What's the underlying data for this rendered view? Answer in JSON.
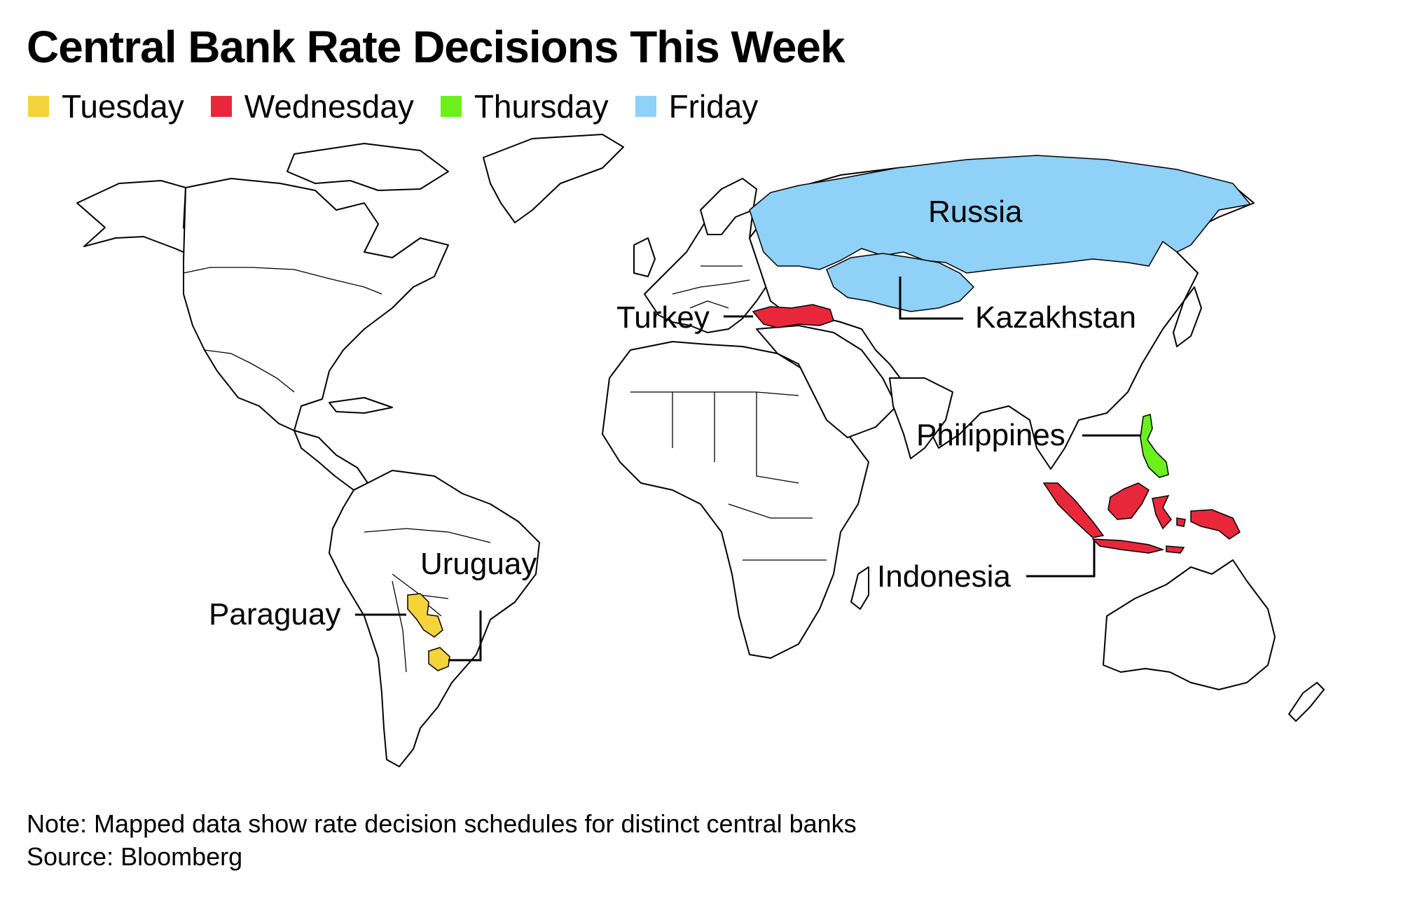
{
  "title": "Central Bank Rate Decisions This Week",
  "legend": [
    {
      "label": "Tuesday",
      "color": "#f5d33b"
    },
    {
      "label": "Wednesday",
      "color": "#e8283a"
    },
    {
      "label": "Thursday",
      "color": "#6bf01c"
    },
    {
      "label": "Friday",
      "color": "#8fd1f7"
    }
  ],
  "countries": {
    "russia": {
      "label": "Russia",
      "day": "Friday",
      "color": "#8fd1f7"
    },
    "kazakhstan": {
      "label": "Kazakhstan",
      "day": "Friday",
      "color": "#8fd1f7"
    },
    "turkey": {
      "label": "Turkey",
      "day": "Wednesday",
      "color": "#e8283a"
    },
    "indonesia": {
      "label": "Indonesia",
      "day": "Wednesday",
      "color": "#e8283a"
    },
    "philippines": {
      "label": "Philippines",
      "day": "Thursday",
      "color": "#6bf01c"
    },
    "paraguay": {
      "label": "Paraguay",
      "day": "Tuesday",
      "color": "#f5d33b"
    },
    "uruguay": {
      "label": "Uruguay",
      "day": "Tuesday",
      "color": "#f5d33b"
    }
  },
  "footer": {
    "note": "Note: Mapped data show rate decision schedules for distinct central banks",
    "source": "Source: Bloomberg"
  }
}
